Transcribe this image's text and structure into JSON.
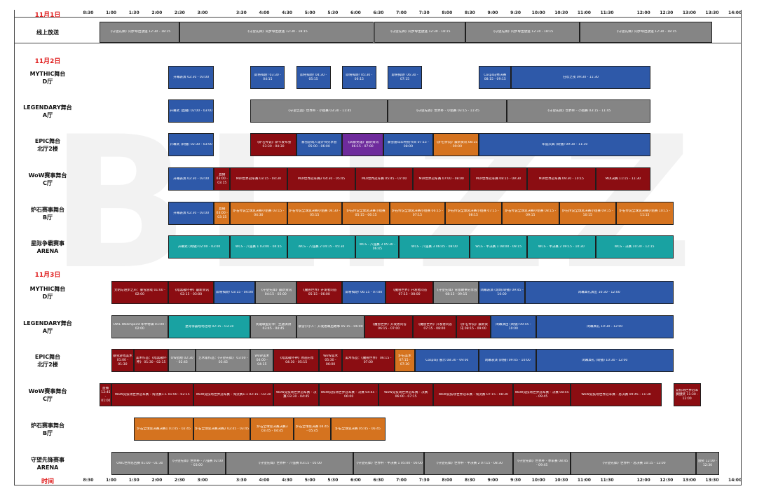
{
  "colors": {
    "gray": "#858585",
    "blue": "#2e59a9",
    "red": "#8b0d12",
    "orange": "#d5731f",
    "teal": "#19a2a2",
    "purple": "#6e2b9c",
    "gray2": "#9a9a9a",
    "day_label": "#e02020"
  },
  "time_axis": {
    "top_labels": [
      "8:30",
      "1:00",
      "1:30",
      "2:00",
      "2:30",
      "3:00",
      "3:30",
      "4:00",
      "4:30",
      "5:00",
      "5:30",
      "6:00",
      "6:30",
      "7:00",
      "7:30",
      "8:00",
      "8:30",
      "9:00",
      "9:30",
      "10:00",
      "10:30",
      "11:00",
      "11:30",
      "12:00",
      "12:30",
      "13:00",
      "13:30",
      "14:00"
    ],
    "bottom_title": "时间"
  },
  "days": [
    {
      "label": "11月1日",
      "rows": [
        {
          "label": [
            "线上放送"
          ],
          "blocks": [
            {
              "start": 8.5,
              "end": 12.0,
              "color": "gray",
              "text": "《守望先锋》同步导出放送 12:30 - 18:15"
            },
            {
              "start": 12.0,
              "end": 20.5,
              "color": "gray",
              "text": "《守望先锋》同步导出放送 12:30 - 18:15"
            },
            {
              "start": 20.5,
              "end": 24.5,
              "color": "gray",
              "text": "《守望先锋》同步导出放送 12:30 - 18:15"
            },
            {
              "start": 24.5,
              "end": 29.5,
              "color": "gray",
              "text": "《守望先锋》同步导出放送 12:30 - 18:15"
            },
            {
              "start": 29.5,
              "end": 35.3,
              "color": "gray",
              "text": "《守望先锋》同步导出放送 12:30 - 18:15"
            }
          ]
        }
      ]
    },
    {
      "label": "11月2日",
      "rows": [
        {
          "label": [
            "MYTHIC舞台",
            "D厅"
          ],
          "blocks": [
            {
              "start": 11.5,
              "end": 13.5,
              "color": "blue",
              "text": "开幕表演 02:30 - 03:00"
            },
            {
              "start": 15.1,
              "end": 16.6,
              "color": "blue",
              "text": "即将揭晓! 03:30 - 04:15"
            },
            {
              "start": 17.1,
              "end": 18.6,
              "color": "blue",
              "text": "即将揭晓! 04:30 - 05:15"
            },
            {
              "start": 19.1,
              "end": 20.6,
              "color": "blue",
              "text": "即将揭晓! 05:30 - 06:15"
            },
            {
              "start": 21.1,
              "end": 22.6,
              "color": "blue",
              "text": "即将揭晓! 06:30 - 07:15"
            },
            {
              "start": 25.1,
              "end": 26.5,
              "color": "blue",
              "text": "Cosplay秀决赛 08:15 - 09:15"
            },
            {
              "start": 26.5,
              "end": 32.6,
              "color": "blue",
              "text": "狂欢之夜 09:30 - 11:30"
            }
          ]
        },
        {
          "label": [
            "LEGENDARY舞台",
            "A厅"
          ],
          "blocks": [
            {
              "start": 11.5,
              "end": 13.5,
              "color": "blue",
              "text": "开幕式 (直播) 02:00 - 03:00"
            },
            {
              "start": 15.1,
              "end": 21.1,
              "color": "gray",
              "text": "《守望之战》世界杯 - 小组赛 03:30 - 11:45"
            },
            {
              "start": 21.1,
              "end": 26.3,
              "color": "gray",
              "text": "《守望先锋》世界杯 - 小组赛 03:15 - 11:45"
            },
            {
              "start": 26.3,
              "end": 32.6,
              "color": "gray",
              "text": "《守望先锋》世界杯 - 小组赛 03:15 - 11:45"
            }
          ]
        },
        {
          "label": [
            "EPIC舞台",
            "北厅2楼"
          ],
          "blocks": [
            {
              "start": 11.5,
              "end": 13.5,
              "color": "blue",
              "text": "开幕式 (转播) 02:30 - 03:00"
            },
            {
              "start": 15.1,
              "end": 17.1,
              "color": "red",
              "text": "《炉石传说》新卡发布会 03:30 - 04:30"
            },
            {
              "start": 17.1,
              "end": 19.1,
              "color": "blue",
              "text": "暴雪游戏人设计师分享会 05:00 - 06:00"
            },
            {
              "start": 19.1,
              "end": 20.9,
              "color": "purple",
              "text": "《风暴英雄》最新资讯 06:15 - 07:00"
            },
            {
              "start": 20.9,
              "end": 23.1,
              "color": "blue",
              "text": "暴雪嘉年华特别节目 07:15 - 08:00"
            },
            {
              "start": 23.1,
              "end": 25.1,
              "color": "orange",
              "text": "《炉石传说》最新资讯 08:15 - 09:00"
            },
            {
              "start": 25.1,
              "end": 32.6,
              "color": "blue",
              "text": "年度庆典 (转播) 09:30 - 11:30"
            }
          ]
        },
        {
          "label": [
            "WoW赛事舞台",
            "C厅"
          ],
          "blocks": [
            {
              "start": 11.5,
              "end": 13.5,
              "color": "blue",
              "text": "开幕表演 02:30 - 03:00"
            },
            {
              "start": 13.5,
              "end": 14.2,
              "color": "red",
              "text": "直播 03:00 - 03:15"
            },
            {
              "start": 14.2,
              "end": 16.7,
              "color": "red",
              "text": "MDI世界冠军赛 03:15 - 04:30"
            },
            {
              "start": 16.7,
              "end": 19.7,
              "color": "red",
              "text": "MDI世界冠军赛2 04:30 - 05:45"
            },
            {
              "start": 19.7,
              "end": 22.2,
              "color": "red",
              "text": "MDI世界冠军赛 05:45 - 07:00"
            },
            {
              "start": 22.2,
              "end": 24.7,
              "color": "red",
              "text": "MDI世界冠军赛 07:00 - 08:00"
            },
            {
              "start": 24.7,
              "end": 27.2,
              "color": "red",
              "text": "MDI世界冠军赛 08:15 - 09:30"
            },
            {
              "start": 27.2,
              "end": 30.2,
              "color": "red",
              "text": "MDI世界冠军赛 09:30 - 10:15"
            },
            {
              "start": 30.2,
              "end": 32.6,
              "color": "red",
              "text": "MDI决赛 11:15 - 11:30"
            }
          ]
        },
        {
          "label": [
            "炉石赛事舞台",
            "B厅"
          ],
          "blocks": [
            {
              "start": 11.5,
              "end": 13.5,
              "color": "blue",
              "text": "开幕表演 02:30 - 03:00"
            },
            {
              "start": 13.5,
              "end": 14.2,
              "color": "orange",
              "text": "直播 03:00 - 03:15"
            },
            {
              "start": 14.2,
              "end": 16.7,
              "color": "orange",
              "text": "炉石传说全球总决赛小组赛 03:15 - 04:30"
            },
            {
              "start": 16.7,
              "end": 19.1,
              "color": "orange",
              "text": "炉石传说全球总决赛小组赛 04:30 - 05:15"
            },
            {
              "start": 19.1,
              "end": 21.2,
              "color": "orange",
              "text": "炉石传说全球总决赛小组赛 05:15 - 06:15"
            },
            {
              "start": 21.2,
              "end": 23.6,
              "color": "orange",
              "text": "炉石传说全球总决赛小组赛 06:15 - 07:15"
            },
            {
              "start": 23.6,
              "end": 26.1,
              "color": "orange",
              "text": "炉石传说全球总决赛小组赛 07:15 - 08:15"
            },
            {
              "start": 26.1,
              "end": 28.6,
              "color": "orange",
              "text": "炉石传说全球总决赛小组赛 08:15 - 09:15"
            },
            {
              "start": 28.6,
              "end": 31.1,
              "color": "orange",
              "text": "炉石传说全球总决赛小组赛 09:15 - 10:15"
            },
            {
              "start": 31.1,
              "end": 33.6,
              "color": "orange",
              "text": "炉石传说全球总决赛小组赛 10:15 - 11:15"
            }
          ]
        },
        {
          "label": [
            "星际争霸赛事",
            "ARENA"
          ],
          "blocks": [
            {
              "start": 11.5,
              "end": 14.2,
              "color": "teal",
              "text": "开幕式 (转播) 02:00 - 03:00"
            },
            {
              "start": 14.2,
              "end": 16.7,
              "color": "teal",
              "text": "WCS - 八强赛 1 03:00 - 04:15"
            },
            {
              "start": 16.7,
              "end": 19.7,
              "color": "teal",
              "text": "WCS - 八强赛 2 04:15 - 05:30"
            },
            {
              "start": 19.7,
              "end": 21.6,
              "color": "teal",
              "text": "WCS - 八强赛 3 05:30 - 06:45"
            },
            {
              "start": 21.6,
              "end": 24.7,
              "color": "teal",
              "text": "WCS - 八强赛 3 06:45 - 08:00"
            },
            {
              "start": 24.7,
              "end": 27.2,
              "color": "teal",
              "text": "WCS - 半决赛 1 08:00 - 09:15"
            },
            {
              "start": 27.2,
              "end": 30.2,
              "color": "teal",
              "text": "WCS - 半决赛 2 09:15 - 10:30"
            },
            {
              "start": 30.2,
              "end": 33.6,
              "color": "teal",
              "text": "WCS - 决赛 10:30 - 12:15"
            }
          ]
        }
      ]
    },
    {
      "label": "11月3日",
      "rows": [
        {
          "label": [
            "MYTHIC舞台",
            "D厅"
          ],
          "blocks": [
            {
              "start": 9.0,
              "end": 11.5,
              "color": "red",
              "text": "文明与进步之声：暴雪游戏 01:00 - 02:00"
            },
            {
              "start": 11.5,
              "end": 13.5,
              "color": "red",
              "text": "《暗黑破坏神》最新资讯 02:15 - 03:00"
            },
            {
              "start": 13.5,
              "end": 15.3,
              "color": "blue",
              "text": "即将揭晓! 03:15 - 04:00"
            },
            {
              "start": 15.3,
              "end": 17.1,
              "color": "gray",
              "text": "《守望先锋》最新资讯 04:15 - 05:00"
            },
            {
              "start": 17.1,
              "end": 19.1,
              "color": "red",
              "text": "《魔兽世界》开发者问答 05:15 - 06:00"
            },
            {
              "start": 19.1,
              "end": 21.0,
              "color": "blue",
              "text": "即将揭晓! 06:15 - 07:00"
            },
            {
              "start": 21.0,
              "end": 23.1,
              "color": "red",
              "text": "《魔兽世界》开发者问答 07:15 - 08:00"
            },
            {
              "start": 23.1,
              "end": 25.1,
              "color": "gray",
              "text": "《守望先锋》背景故事分享会 08:15 - 09:15"
            },
            {
              "start": 25.1,
              "end": 27.1,
              "color": "blue",
              "text": "闭幕表演 (现场/转播) 09:45 - 10:00"
            },
            {
              "start": 27.1,
              "end": 33.6,
              "color": "blue",
              "text": "闭幕典礼演出 10:30 - 12:00"
            }
          ]
        },
        {
          "label": [
            "LEGENDARY舞台",
            "A厅"
          ],
          "blocks": [
            {
              "start": 9.0,
              "end": 11.5,
              "color": "gray",
              "text": "OWL Watchpoint 年中特辑 01:00 - 02:00"
            },
            {
              "start": 11.5,
              "end": 15.1,
              "color": "teal",
              "text": "星际争霸现场活动 02:15 - 03:30"
            },
            {
              "start": 15.1,
              "end": 17.1,
              "color": "gray",
              "text": "英雄联盟分享：主题演讲 03:45 - 04:45"
            },
            {
              "start": 17.1,
              "end": 20.1,
              "color": "gray",
              "text": "暴雪小小人：开发者幕后故事 05:15 - 06:00"
            },
            {
              "start": 20.1,
              "end": 22.2,
              "color": "red",
              "text": "《魔兽世界》开发者问答 06:15 - 07:00"
            },
            {
              "start": 22.2,
              "end": 24.1,
              "color": "red",
              "text": "《魔兽世界》开发者问答 07:15 - 08:00"
            },
            {
              "start": 24.1,
              "end": 25.6,
              "color": "red",
              "text": "《炉石传说》最新资讯 08:15 - 09:00"
            },
            {
              "start": 25.6,
              "end": 27.6,
              "color": "blue",
              "text": "闭幕演出 (转播) 09:45 - 10:00"
            },
            {
              "start": 27.6,
              "end": 33.6,
              "color": "blue",
              "text": "闭幕典礼 10:30 - 12:00"
            }
          ]
        },
        {
          "label": [
            "EPIC舞台",
            "北厅2楼"
          ],
          "blocks": [
            {
              "start": 9.0,
              "end": 10.0,
              "color": "red",
              "text": "暴雪游戏美术 01:00 - 01:30"
            },
            {
              "start": 10.0,
              "end": 11.5,
              "color": "red",
              "text": "美术作品：《暗黑破坏神》 01:30 - 02:15"
            },
            {
              "start": 11.5,
              "end": 12.7,
              "color": "gray",
              "text": "OW战绩 02:30 - 02:45"
            },
            {
              "start": 12.7,
              "end": 15.1,
              "color": "gray",
              "text": "艺术家作品：《守望先锋》 03:00 - 03:45"
            },
            {
              "start": 15.1,
              "end": 16.1,
              "color": "gray",
              "text": "WoW美术 04:00 - 04:15"
            },
            {
              "start": 16.1,
              "end": 18.1,
              "color": "red",
              "text": "《暗黑破坏神》原画分享 04:30 - 05:15"
            },
            {
              "start": 18.1,
              "end": 19.1,
              "color": "red",
              "text": "WoW美术 05:30 - 06:00"
            },
            {
              "start": 19.1,
              "end": 21.4,
              "color": "red",
              "text": "美术作品：《魔兽世界》 06:15 - 07:00"
            },
            {
              "start": 21.4,
              "end": 22.3,
              "color": "orange",
              "text": "炉石美术 07:15 - 07:30"
            },
            {
              "start": 22.3,
              "end": 25.1,
              "color": "blue",
              "text": "Cosplay 展示 08:30 - 09:00"
            },
            {
              "start": 25.1,
              "end": 27.6,
              "color": "blue",
              "text": "闭幕表演 (转播) 09:45 - 10:00"
            },
            {
              "start": 27.6,
              "end": 33.6,
              "color": "blue",
              "text": "闭幕典礼 (转播) 10:30 - 12:00"
            }
          ]
        },
        {
          "label": [
            "WoW赛事舞台",
            "C厅"
          ],
          "blocks": [
            {
              "start": 8.5,
              "end": 9.0,
              "color": "red",
              "text": "直播 12:45 - 01:00"
            },
            {
              "start": 9.0,
              "end": 12.6,
              "color": "red",
              "text": "WoW竞技场世界冠军赛 - 淘汰赛1-1 01:00 - 02:15"
            },
            {
              "start": 12.6,
              "end": 16.1,
              "color": "red",
              "text": "WoW竞技场世界冠军赛 - 淘汰赛1-1 02:15 - 03:30"
            },
            {
              "start": 16.1,
              "end": 18.1,
              "color": "red",
              "text": "WoW竞技场世界冠军赛 - 决赛 03:30 - 04:45"
            },
            {
              "start": 18.1,
              "end": 20.7,
              "color": "red",
              "text": "WoW竞技场世界冠军赛 - 决赛 04:45 - 06:00"
            },
            {
              "start": 20.7,
              "end": 23.1,
              "color": "red",
              "text": "WoW竞技场世界冠军赛 - 决赛 06:00 - 07:15"
            },
            {
              "start": 23.1,
              "end": 26.6,
              "color": "red",
              "text": "WoW竞技场世界冠军赛 - 淘汰赛 07:15 - 08:30"
            },
            {
              "start": 26.6,
              "end": 29.1,
              "color": "red",
              "text": "WoW竞技场世界冠军赛 - 决赛 08:45 - 09:45"
            },
            {
              "start": 29.1,
              "end": 33.1,
              "color": "red",
              "text": "WoW竞技场世界冠军赛 - 总决赛 09:45 - 11:30"
            },
            {
              "start": 33.6,
              "end": 34.8,
              "color": "red",
              "text": "竞技场世界冠军赛颁奖 11:30 - 12:00"
            }
          ]
        },
        {
          "label": [
            "炉石赛事舞台",
            "B厅"
          ],
          "blocks": [
            {
              "start": 10.0,
              "end": 12.6,
              "color": "orange",
              "text": "炉石全球总决赛决赛1 01:45 - 02:45"
            },
            {
              "start": 12.6,
              "end": 15.1,
              "color": "orange",
              "text": "炉石全球总决赛决赛2 02:45 - 03:45"
            },
            {
              "start": 15.1,
              "end": 17.0,
              "color": "orange",
              "text": "炉石全球总决赛决赛3 03:45 - 04:45"
            },
            {
              "start": 17.0,
              "end": 18.6,
              "color": "orange",
              "text": "炉石全球总决赛 04:45 - 05:45"
            },
            {
              "start": 18.6,
              "end": 21.0,
              "color": "orange",
              "text": "炉石全球总决赛 05:45 - 06:45"
            }
          ]
        },
        {
          "label": [
            "守望先锋赛事",
            "ARENA"
          ],
          "blocks": [
            {
              "start": 9.0,
              "end": 11.5,
              "color": "gray",
              "text": "OWL世界巡回赛 01:00 - 01:30"
            },
            {
              "start": 11.5,
              "end": 14.0,
              "color": "gray",
              "text": "《守望先锋》世界杯 - 八强赛 02:00 - 03:00"
            },
            {
              "start": 14.0,
              "end": 19.6,
              "color": "gray",
              "text": "《守望先锋》世界杯 - 八强赛 03:15 - 05:00"
            },
            {
              "start": 19.6,
              "end": 22.7,
              "color": "gray",
              "text": "《守望先锋》世界杯 - 半决赛 1 05:00 - 06:00"
            },
            {
              "start": 22.7,
              "end": 26.6,
              "color": "gray",
              "text": "《守望先锋》世界杯 - 半决赛 2 07:15 - 08:30"
            },
            {
              "start": 26.6,
              "end": 29.1,
              "color": "gray",
              "text": "《守望先锋》世界杯 - 季军赛 08:45 - 09:45"
            },
            {
              "start": 29.1,
              "end": 34.6,
              "color": "gray",
              "text": "《守望先锋》世界杯 - 总决赛 10:15 - 12:00"
            },
            {
              "start": 34.6,
              "end": 35.6,
              "color": "gray",
              "text": "颁奖 12:00 - 12:30"
            }
          ]
        }
      ]
    }
  ]
}
